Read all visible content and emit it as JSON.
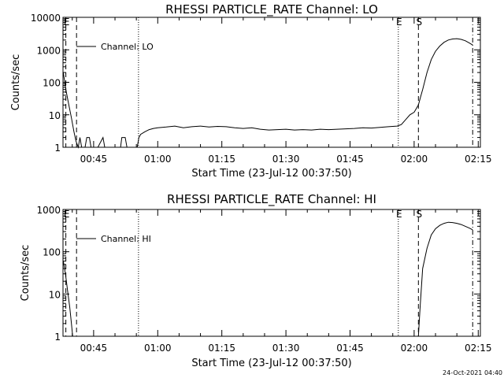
{
  "footer": {
    "timestamp": "24-Oct-2021 04:40"
  },
  "chart_data": [
    {
      "type": "line",
      "title": "RHESSI PARTICLE_RATE Channel: LO",
      "xlabel": "Start Time (23-Jul-12 00:37:50)",
      "ylabel": "Counts/sec",
      "yscale": "log",
      "xlim": [
        37.833,
        135.5
      ],
      "ylim": [
        1,
        10000
      ],
      "xticks": [
        {
          "value": 45,
          "label": "00:45"
        },
        {
          "value": 60,
          "label": "01:00"
        },
        {
          "value": 75,
          "label": "01:15"
        },
        {
          "value": 90,
          "label": "01:30"
        },
        {
          "value": 105,
          "label": "01:45"
        },
        {
          "value": 120,
          "label": "02:00"
        },
        {
          "value": 135,
          "label": "02:15"
        }
      ],
      "yticks": [
        {
          "value": 1,
          "label": "1"
        },
        {
          "value": 10,
          "label": "10"
        },
        {
          "value": 100,
          "label": "100"
        },
        {
          "value": 1000,
          "label": "1000"
        },
        {
          "value": 10000,
          "label": "10000"
        }
      ],
      "legend": {
        "label": "Channel: LO",
        "placement": "top-left"
      },
      "markers": [
        {
          "label": "E",
          "x": 38.5,
          "style": "dashed"
        },
        {
          "label": "",
          "x": 41.0,
          "style": "dashed"
        },
        {
          "label": "",
          "x": 55.5,
          "style": "dotted"
        },
        {
          "label": "E",
          "x": 116.3,
          "style": "dotted"
        },
        {
          "label": "S",
          "x": 121.0,
          "style": "dashed"
        },
        {
          "label": "",
          "x": 133.7,
          "style": "dashdot"
        }
      ],
      "series": [
        {
          "values": [
            [
              37.9,
              200
            ],
            [
              38.5,
              60
            ],
            [
              39.2,
              20
            ],
            [
              39.8,
              8
            ],
            [
              40.4,
              3
            ],
            [
              40.9,
              1.5
            ],
            [
              41.4,
              1
            ],
            [
              41.8,
              2
            ],
            [
              42.2,
              1
            ],
            [
              43.0,
              1
            ],
            [
              43.4,
              2
            ],
            [
              44.0,
              2
            ],
            [
              44.4,
              1
            ],
            [
              46.0,
              1
            ],
            [
              47.2,
              2
            ],
            [
              47.6,
              1
            ],
            [
              49.0,
              1
            ],
            [
              51.3,
              1
            ],
            [
              51.6,
              2
            ],
            [
              52.4,
              2
            ],
            [
              52.8,
              1
            ],
            [
              54.0,
              1
            ],
            [
              55.2,
              1
            ],
            [
              55.6,
              2
            ],
            [
              56.0,
              2.5
            ],
            [
              57.0,
              3.0
            ],
            [
              58.0,
              3.5
            ],
            [
              59.0,
              3.8
            ],
            [
              60.0,
              4.0
            ],
            [
              62.0,
              4.2
            ],
            [
              64.0,
              4.5
            ],
            [
              66.0,
              4.0
            ],
            [
              68.0,
              4.3
            ],
            [
              70.0,
              4.5
            ],
            [
              72.0,
              4.2
            ],
            [
              74.0,
              4.4
            ],
            [
              76.0,
              4.3
            ],
            [
              78.0,
              4.0
            ],
            [
              80.0,
              3.8
            ],
            [
              82.0,
              4.0
            ],
            [
              84.0,
              3.6
            ],
            [
              86.0,
              3.4
            ],
            [
              88.0,
              3.5
            ],
            [
              90.0,
              3.6
            ],
            [
              92.0,
              3.4
            ],
            [
              94.0,
              3.5
            ],
            [
              96.0,
              3.4
            ],
            [
              98.0,
              3.6
            ],
            [
              100.0,
              3.5
            ],
            [
              102.0,
              3.6
            ],
            [
              104.0,
              3.7
            ],
            [
              106.0,
              3.8
            ],
            [
              108.0,
              4.0
            ],
            [
              110.0,
              3.9
            ],
            [
              112.0,
              4.1
            ],
            [
              114.0,
              4.3
            ],
            [
              116.0,
              4.5
            ],
            [
              117.0,
              5.0
            ],
            [
              118.0,
              7.0
            ],
            [
              119.0,
              10
            ],
            [
              120.0,
              12
            ],
            [
              121.0,
              20
            ],
            [
              121.5,
              35
            ],
            [
              122.0,
              60
            ],
            [
              123.0,
              200
            ],
            [
              124.0,
              500
            ],
            [
              125.0,
              900
            ],
            [
              126.0,
              1300
            ],
            [
              127.0,
              1700
            ],
            [
              128.0,
              2000
            ],
            [
              129.0,
              2150
            ],
            [
              130.0,
              2200
            ],
            [
              131.0,
              2100
            ],
            [
              132.0,
              1900
            ],
            [
              133.0,
              1600
            ],
            [
              133.7,
              1400
            ]
          ]
        }
      ]
    },
    {
      "type": "line",
      "title": "RHESSI PARTICLE_RATE Channel: HI",
      "xlabel": "Start Time (23-Jul-12 00:37:50)",
      "ylabel": "Counts/sec",
      "yscale": "log",
      "xlim": [
        37.833,
        135.5
      ],
      "ylim": [
        1,
        1000
      ],
      "xticks": [
        {
          "value": 45,
          "label": "00:45"
        },
        {
          "value": 60,
          "label": "01:00"
        },
        {
          "value": 75,
          "label": "01:15"
        },
        {
          "value": 90,
          "label": "01:30"
        },
        {
          "value": 105,
          "label": "01:45"
        },
        {
          "value": 120,
          "label": "02:00"
        },
        {
          "value": 135,
          "label": "02:15"
        }
      ],
      "yticks": [
        {
          "value": 1,
          "label": "1"
        },
        {
          "value": 10,
          "label": "10"
        },
        {
          "value": 100,
          "label": "100"
        },
        {
          "value": 1000,
          "label": "1000"
        }
      ],
      "legend": {
        "label": "Channel: HI",
        "placement": "top-left"
      },
      "markers": [
        {
          "label": "E",
          "x": 38.5,
          "style": "dashed"
        },
        {
          "label": "",
          "x": 41.0,
          "style": "dashed"
        },
        {
          "label": "",
          "x": 55.5,
          "style": "dotted"
        },
        {
          "label": "E",
          "x": 116.3,
          "style": "dotted"
        },
        {
          "label": "S",
          "x": 121.0,
          "style": "dashed"
        },
        {
          "label": "",
          "x": 133.7,
          "style": "dashdot"
        }
      ],
      "series": [
        {
          "values": [
            [
              37.9,
              60
            ],
            [
              38.4,
              30
            ],
            [
              38.9,
              12
            ],
            [
              39.4,
              5
            ],
            [
              39.8,
              2
            ],
            [
              40.1,
              1
            ]
          ]
        },
        {
          "values": [
            [
              121.0,
              1
            ],
            [
              121.4,
              5
            ],
            [
              122.0,
              40
            ],
            [
              123.0,
              120
            ],
            [
              124.0,
              250
            ],
            [
              125.0,
              350
            ],
            [
              126.0,
              420
            ],
            [
              127.0,
              470
            ],
            [
              128.0,
              500
            ],
            [
              129.0,
              490
            ],
            [
              130.0,
              470
            ],
            [
              131.0,
              440
            ],
            [
              132.0,
              400
            ],
            [
              133.0,
              360
            ],
            [
              133.7,
              330
            ]
          ]
        }
      ]
    }
  ]
}
